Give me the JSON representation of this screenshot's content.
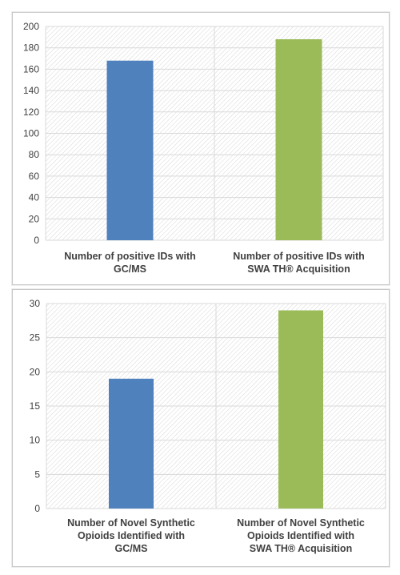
{
  "chart_data": [
    {
      "type": "bar",
      "categories": [
        "Number of positive IDs with GC/MS",
        "Number of positive IDs with SWA TH® Acquisition"
      ],
      "category_lines": [
        [
          "Number of positive IDs with",
          "GC/MS"
        ],
        [
          "Number of positive IDs with",
          "SWA TH® Acquisition"
        ]
      ],
      "values": [
        168,
        188
      ],
      "bar_colors": [
        "#4f81bd",
        "#9bbb59"
      ],
      "ylim": [
        0,
        200
      ],
      "yticks": [
        0,
        20,
        40,
        60,
        80,
        100,
        120,
        140,
        160,
        180,
        200
      ],
      "grid": true,
      "legend": "none"
    },
    {
      "type": "bar",
      "categories": [
        "Number of Novel Synthetic Opioids Identified with GC/MS",
        "Number of Novel Synthetic Opioids Identified with SWA TH® Acquisition"
      ],
      "category_lines": [
        [
          "Number of Novel Synthetic",
          "Opioids Identified with",
          "GC/MS"
        ],
        [
          "Number of Novel Synthetic",
          "Opioids Identified with",
          "SWA TH® Acquisition"
        ]
      ],
      "values": [
        19,
        29
      ],
      "bar_colors": [
        "#4f81bd",
        "#9bbb59"
      ],
      "ylim": [
        0,
        30
      ],
      "yticks": [
        0,
        5,
        10,
        15,
        20,
        25,
        30
      ],
      "grid": true,
      "legend": "none"
    }
  ]
}
